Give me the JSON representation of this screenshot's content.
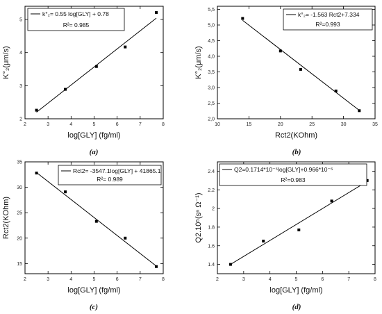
{
  "chart_data": [
    {
      "type": "scatter",
      "caption": "(a)",
      "xlabel": "log[GLY] (fg/ml)",
      "ylabel": "K°₂(μm/s)",
      "xlim": [
        2,
        8
      ],
      "ylim": [
        2,
        5.4
      ],
      "xticks": [
        2,
        3,
        4,
        5,
        6,
        7,
        8
      ],
      "yticks": [
        2,
        3,
        4,
        5
      ],
      "x": [
        2.5,
        3.75,
        5.1,
        6.35,
        7.7
      ],
      "y": [
        2.26,
        2.89,
        3.58,
        4.17,
        5.21
      ],
      "fit": {
        "x": [
          2.5,
          7.7
        ],
        "y": [
          2.2,
          5.04
        ]
      },
      "legend": {
        "position": "top-left",
        "equation": "k°₂= 0.55 log[GLY] + 0.78",
        "r2": "R²= 0.985"
      }
    },
    {
      "type": "scatter",
      "caption": "(b)",
      "xlabel": "Rct2(KOhm)",
      "ylabel": "K°₂(μm/s)",
      "xlim": [
        10,
        35
      ],
      "ylim": [
        2,
        5.6
      ],
      "xticks": [
        10,
        15,
        20,
        25,
        30,
        35
      ],
      "yticks": [
        2.0,
        2.5,
        3.0,
        3.5,
        4.0,
        4.5,
        5.0,
        5.5
      ],
      "ytick_labels": [
        "2,0",
        "2,5",
        "3,0",
        "3,5",
        "4,0",
        "4,5",
        "5,0",
        "5,5"
      ],
      "x": [
        14.0,
        20.0,
        23.2,
        28.8,
        32.5
      ],
      "y": [
        5.21,
        4.17,
        3.58,
        2.89,
        2.26
      ],
      "fit": {
        "x": [
          14.0,
          32.5
        ],
        "y": [
          5.15,
          2.27
        ]
      },
      "legend": {
        "position": "top-right",
        "equation": "k°₂= -1.563 Rct2+7.334",
        "r2": "R²=0.993"
      }
    },
    {
      "type": "scatter",
      "caption": "(c)",
      "xlabel": "log[GLY] (fg/ml)",
      "ylabel": "Rct2(KOhm)",
      "xlim": [
        2,
        8
      ],
      "ylim": [
        13,
        35
      ],
      "xticks": [
        2,
        3,
        4,
        5,
        6,
        7,
        8
      ],
      "yticks": [
        15,
        20,
        25,
        30,
        35
      ],
      "x": [
        2.5,
        3.75,
        5.1,
        6.35,
        7.7
      ],
      "y": [
        32.8,
        29.1,
        23.3,
        20.0,
        14.4
      ],
      "fit": {
        "x": [
          2.5,
          7.7
        ],
        "y": [
          32.9,
          14.5
        ]
      },
      "legend": {
        "position": "top-right",
        "equation": "Rct2= -3547.1log[GLY] + 41865.1",
        "r2": "R²= 0.989"
      }
    },
    {
      "type": "scatter",
      "caption": "(d)",
      "xlabel": "log[GLY] (fg/ml)",
      "ylabel": "Q2.10⁵(sⁿ Ω⁻¹)",
      "xlim": [
        2,
        8
      ],
      "ylim": [
        1.3,
        2.5
      ],
      "xticks": [
        2,
        3,
        4,
        5,
        6,
        7,
        8
      ],
      "yticks": [
        1.4,
        1.6,
        1.8,
        2.0,
        2.2,
        2.4
      ],
      "x": [
        2.5,
        3.75,
        5.1,
        6.35,
        7.7
      ],
      "y": [
        1.4,
        1.65,
        1.77,
        2.08,
        2.3
      ],
      "fit": {
        "x": [
          2.5,
          7.7
        ],
        "y": [
          1.4,
          2.29
        ]
      },
      "legend": {
        "position": "top-left",
        "equation": "Q2=0.1714*10⁻⁵log[GLY]+0.966*10⁻⁵",
        "r2": "R²=0.983"
      }
    }
  ]
}
